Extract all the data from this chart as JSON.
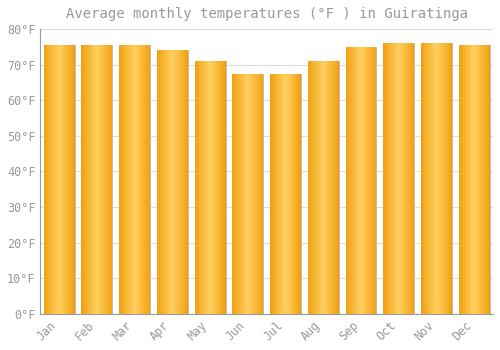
{
  "title": "Average monthly temperatures (°F ) in Guiratinga",
  "months": [
    "Jan",
    "Feb",
    "Mar",
    "Apr",
    "May",
    "Jun",
    "Jul",
    "Aug",
    "Sep",
    "Oct",
    "Nov",
    "Dec"
  ],
  "values": [
    75.5,
    75.5,
    75.5,
    74.0,
    71.0,
    67.5,
    67.5,
    71.0,
    75.0,
    76.0,
    76.0,
    75.5
  ],
  "bar_color_center": "#FFD060",
  "bar_color_edge": "#F0A010",
  "bar_border_color": "#B8B8B8",
  "background_color": "#FFFFFF",
  "grid_color": "#DDDDDD",
  "text_color": "#999999",
  "ylim": [
    0,
    80
  ],
  "ytick_step": 10,
  "title_fontsize": 10,
  "tick_fontsize": 8.5,
  "bar_width": 0.82
}
